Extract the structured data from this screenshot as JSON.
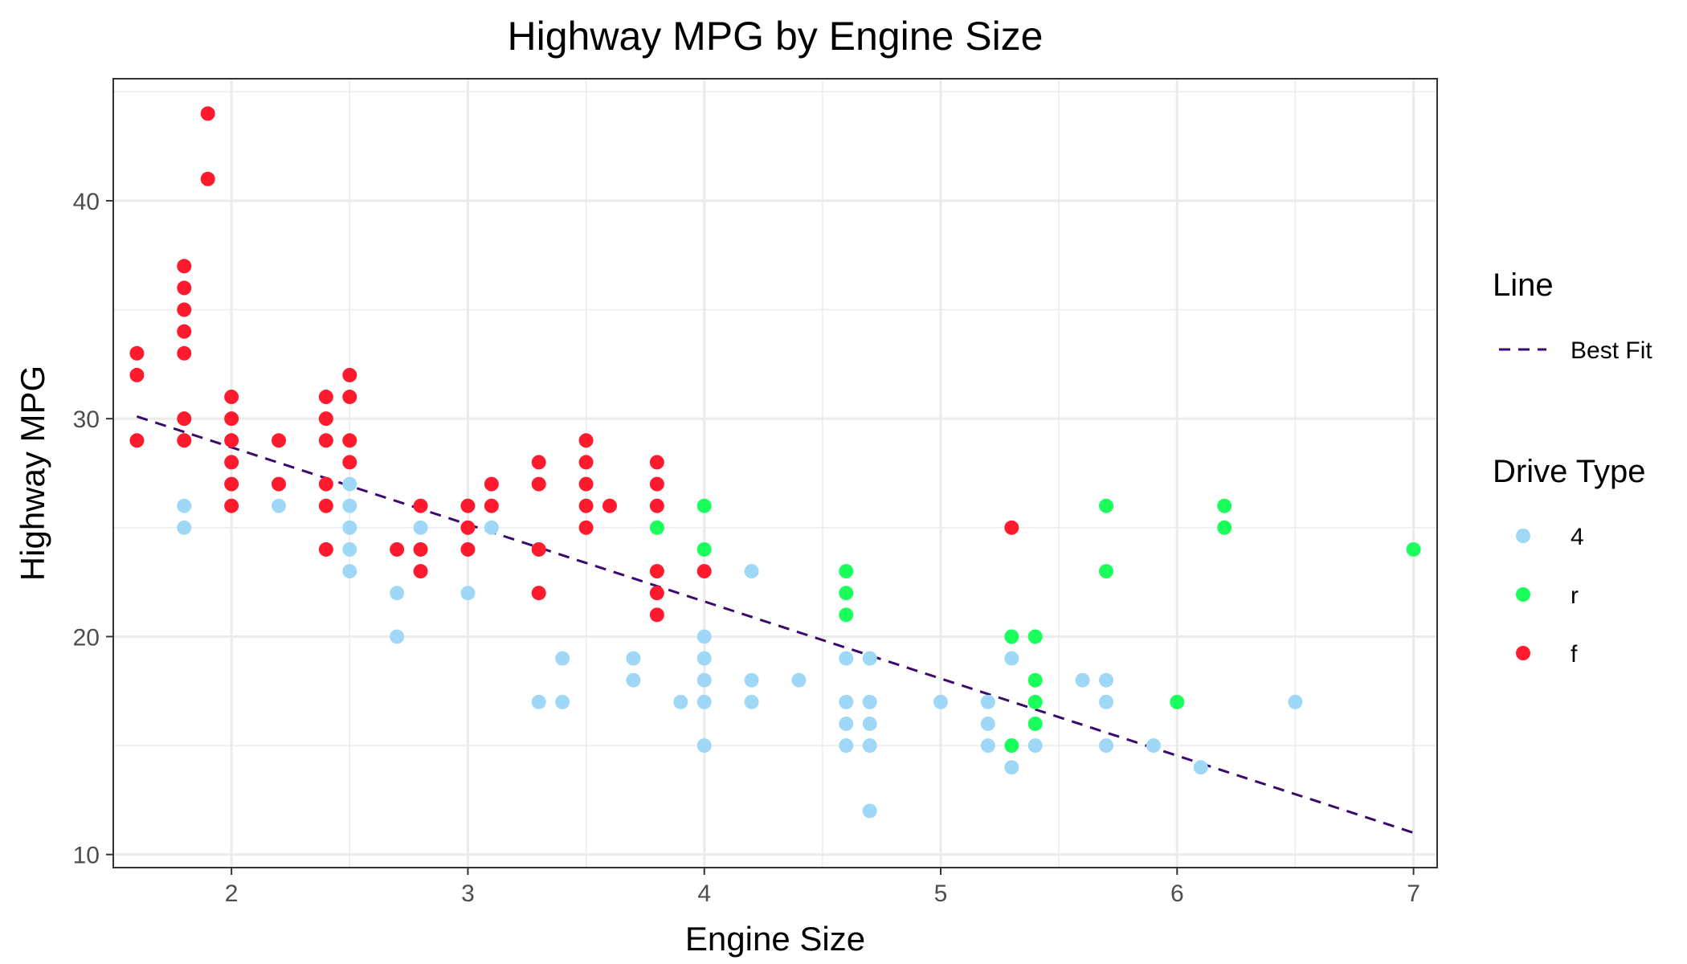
{
  "chart_data": {
    "type": "scatter",
    "title": "Highway MPG by Engine Size",
    "xlabel": "Engine Size",
    "ylabel": "Highway MPG",
    "xlim": [
      1.5,
      7.1
    ],
    "ylim": [
      9.4,
      45.6
    ],
    "x_ticks": [
      "2",
      "3",
      "4",
      "5",
      "6",
      "7"
    ],
    "y_ticks": [
      "10",
      "20",
      "30",
      "40"
    ],
    "grid": true,
    "legend_position": "right",
    "legends": {
      "line": {
        "title": "Line",
        "entries": [
          {
            "label": "Best Fit",
            "color": "#3b0a6e",
            "style": "dashed"
          }
        ]
      },
      "drive": {
        "title": "Drive Type",
        "entries": [
          {
            "label": "4",
            "color": "#9fd8f7"
          },
          {
            "label": "r",
            "color": "#1aff5c"
          },
          {
            "label": "f",
            "color": "#ff1a2e"
          }
        ]
      }
    },
    "series": [
      {
        "name": "4",
        "color": "#9fd8f7",
        "points": [
          [
            1.8,
            26
          ],
          [
            1.8,
            25
          ],
          [
            2.2,
            26
          ],
          [
            2.5,
            27
          ],
          [
            2.5,
            26
          ],
          [
            2.5,
            25
          ],
          [
            2.5,
            24
          ],
          [
            2.5,
            23
          ],
          [
            2.7,
            22
          ],
          [
            2.7,
            20
          ],
          [
            2.8,
            25
          ],
          [
            3.0,
            22
          ],
          [
            3.1,
            25
          ],
          [
            3.3,
            17
          ],
          [
            3.4,
            19
          ],
          [
            3.4,
            17
          ],
          [
            3.7,
            19
          ],
          [
            3.7,
            18
          ],
          [
            3.9,
            17
          ],
          [
            4.0,
            20
          ],
          [
            4.0,
            19
          ],
          [
            4.0,
            18
          ],
          [
            4.0,
            17
          ],
          [
            4.0,
            15
          ],
          [
            4.2,
            23
          ],
          [
            4.2,
            18
          ],
          [
            4.2,
            17
          ],
          [
            4.4,
            18
          ],
          [
            4.6,
            19
          ],
          [
            4.6,
            17
          ],
          [
            4.6,
            16
          ],
          [
            4.6,
            15
          ],
          [
            4.7,
            19
          ],
          [
            4.7,
            17
          ],
          [
            4.7,
            16
          ],
          [
            4.7,
            15
          ],
          [
            4.7,
            12
          ],
          [
            5.0,
            17
          ],
          [
            5.2,
            17
          ],
          [
            5.2,
            16
          ],
          [
            5.2,
            15
          ],
          [
            5.3,
            19
          ],
          [
            5.3,
            14
          ],
          [
            5.4,
            15
          ],
          [
            5.6,
            18
          ],
          [
            5.7,
            18
          ],
          [
            5.7,
            17
          ],
          [
            5.7,
            15
          ],
          [
            5.9,
            15
          ],
          [
            6.1,
            14
          ],
          [
            6.5,
            17
          ]
        ]
      },
      {
        "name": "r",
        "color": "#1aff5c",
        "points": [
          [
            3.8,
            25
          ],
          [
            4.0,
            26
          ],
          [
            4.0,
            24
          ],
          [
            4.6,
            23
          ],
          [
            4.6,
            22
          ],
          [
            4.6,
            21
          ],
          [
            5.3,
            20
          ],
          [
            5.3,
            15
          ],
          [
            5.4,
            20
          ],
          [
            5.4,
            18
          ],
          [
            5.4,
            17
          ],
          [
            5.4,
            16
          ],
          [
            5.7,
            26
          ],
          [
            5.7,
            23
          ],
          [
            6.0,
            17
          ],
          [
            6.2,
            26
          ],
          [
            6.2,
            25
          ],
          [
            7.0,
            24
          ]
        ]
      },
      {
        "name": "f",
        "color": "#ff1a2e",
        "points": [
          [
            1.6,
            33
          ],
          [
            1.6,
            32
          ],
          [
            1.6,
            29
          ],
          [
            1.8,
            37
          ],
          [
            1.8,
            36
          ],
          [
            1.8,
            35
          ],
          [
            1.8,
            34
          ],
          [
            1.8,
            33
          ],
          [
            1.8,
            30
          ],
          [
            1.8,
            29
          ],
          [
            1.9,
            44
          ],
          [
            1.9,
            41
          ],
          [
            2.0,
            31
          ],
          [
            2.0,
            30
          ],
          [
            2.0,
            29
          ],
          [
            2.0,
            28
          ],
          [
            2.0,
            27
          ],
          [
            2.0,
            26
          ],
          [
            2.2,
            29
          ],
          [
            2.2,
            27
          ],
          [
            2.4,
            31
          ],
          [
            2.4,
            30
          ],
          [
            2.4,
            29
          ],
          [
            2.4,
            27
          ],
          [
            2.4,
            26
          ],
          [
            2.4,
            24
          ],
          [
            2.5,
            32
          ],
          [
            2.5,
            31
          ],
          [
            2.5,
            29
          ],
          [
            2.5,
            28
          ],
          [
            2.7,
            24
          ],
          [
            2.8,
            26
          ],
          [
            2.8,
            24
          ],
          [
            2.8,
            23
          ],
          [
            3.0,
            26
          ],
          [
            3.0,
            25
          ],
          [
            3.0,
            24
          ],
          [
            3.1,
            27
          ],
          [
            3.1,
            26
          ],
          [
            3.3,
            28
          ],
          [
            3.3,
            27
          ],
          [
            3.3,
            24
          ],
          [
            3.3,
            22
          ],
          [
            3.5,
            29
          ],
          [
            3.5,
            28
          ],
          [
            3.5,
            27
          ],
          [
            3.5,
            26
          ],
          [
            3.5,
            25
          ],
          [
            3.6,
            26
          ],
          [
            3.8,
            28
          ],
          [
            3.8,
            27
          ],
          [
            3.8,
            26
          ],
          [
            3.8,
            23
          ],
          [
            3.8,
            22
          ],
          [
            3.8,
            21
          ],
          [
            4.0,
            23
          ],
          [
            5.3,
            25
          ]
        ]
      }
    ],
    "fit_line": {
      "name": "Best Fit",
      "color": "#3b0a6e",
      "style": "dashed",
      "x": [
        1.6,
        7.0
      ],
      "y": [
        30.1,
        11.0
      ]
    }
  }
}
